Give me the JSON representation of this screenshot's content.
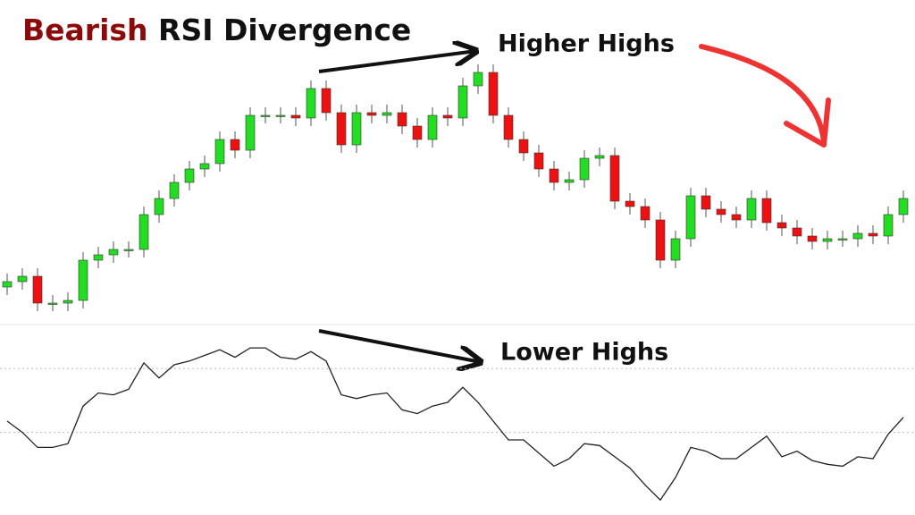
{
  "chart_data": [
    {
      "type": "candlestick",
      "title_highlight": "Bearish",
      "title": "RSI Divergence",
      "title_highlight_color": "#8b0a0a",
      "annotation": "Higher Highs",
      "up_color": "#22dd22",
      "down_color": "#ee1111",
      "ylim": [
        0,
        100
      ],
      "open": [
        13,
        15,
        17,
        7,
        7,
        8,
        23,
        25,
        27,
        27,
        40,
        46,
        52,
        57,
        59,
        68,
        64,
        77,
        77,
        77,
        76,
        87,
        78,
        66,
        78,
        77,
        78,
        73,
        68,
        77,
        76,
        88,
        93,
        77,
        68,
        63,
        57,
        52,
        53,
        61,
        62,
        45,
        43,
        38,
        23,
        31,
        47,
        42,
        40,
        38,
        46,
        37,
        35,
        32,
        30,
        31,
        31,
        33,
        32,
        40
      ],
      "high": [
        18,
        20,
        20,
        10,
        11,
        26,
        28,
        30,
        30,
        43,
        49,
        55,
        60,
        62,
        71,
        71,
        80,
        80,
        80,
        80,
        90,
        90,
        81,
        81,
        81,
        81,
        81,
        76,
        80,
        80,
        91,
        96,
        96,
        80,
        71,
        66,
        60,
        56,
        64,
        65,
        65,
        48,
        46,
        41,
        34,
        50,
        50,
        45,
        43,
        49,
        49,
        40,
        38,
        35,
        34,
        34,
        36,
        36,
        43,
        49
      ],
      "low": [
        10,
        12,
        4,
        4,
        4,
        5,
        20,
        22,
        24,
        24,
        37,
        43,
        49,
        54,
        56,
        61,
        61,
        74,
        74,
        73,
        73,
        75,
        63,
        63,
        74,
        74,
        70,
        65,
        65,
        73,
        73,
        85,
        74,
        65,
        60,
        54,
        49,
        49,
        50,
        58,
        42,
        40,
        35,
        20,
        20,
        28,
        39,
        37,
        35,
        35,
        34,
        32,
        29,
        27,
        27,
        28,
        28,
        29,
        29,
        37
      ],
      "close": [
        15,
        17,
        7,
        7,
        8,
        23,
        25,
        27,
        27,
        40,
        46,
        52,
        57,
        59,
        68,
        64,
        77,
        77,
        77,
        76,
        87,
        78,
        66,
        78,
        77,
        78,
        73,
        68,
        77,
        76,
        88,
        93,
        77,
        68,
        63,
        57,
        52,
        53,
        61,
        62,
        45,
        43,
        38,
        23,
        31,
        47,
        42,
        40,
        38,
        46,
        37,
        35,
        32,
        30,
        31,
        31,
        33,
        32,
        40,
        46
      ]
    },
    {
      "type": "line",
      "annotation": "Lower Highs",
      "color": "#222222",
      "ylim": [
        0,
        100
      ],
      "levels": [
        78,
        44
      ],
      "values": [
        50,
        44,
        36,
        36,
        38,
        58,
        65,
        64,
        67,
        81,
        73,
        80,
        82,
        85,
        88,
        84,
        89,
        89,
        84,
        83,
        87,
        82,
        64,
        62,
        64,
        65,
        56,
        54,
        58,
        60,
        68,
        60,
        50,
        40,
        40,
        33,
        26,
        30,
        38,
        37,
        31,
        25,
        16,
        8,
        20,
        36,
        34,
        30,
        30,
        36,
        42,
        31,
        34,
        29,
        27,
        26,
        31,
        30,
        43,
        52
      ]
    }
  ]
}
